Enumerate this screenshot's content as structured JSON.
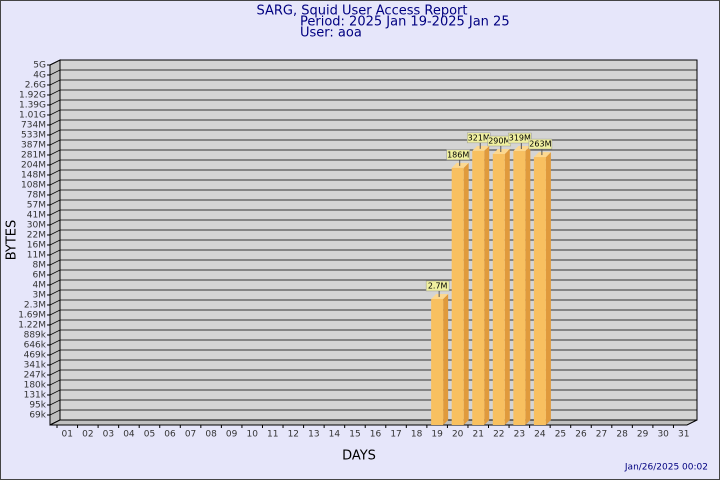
{
  "chart_data": {
    "type": "bar",
    "title": "SARG, Squid User Access Report",
    "subtitle": "Period: 2025 Jan 19-2025 Jan 25",
    "user": "User: aoa",
    "xlabel": "DAYS",
    "ylabel": "BYTES",
    "footer": "Jan/26/2025 00:02",
    "color": "#f8c060",
    "categories": [
      "01",
      "02",
      "03",
      "04",
      "05",
      "06",
      "07",
      "08",
      "09",
      "10",
      "11",
      "12",
      "13",
      "14",
      "15",
      "16",
      "17",
      "18",
      "19",
      "20",
      "21",
      "22",
      "23",
      "24",
      "25",
      "26",
      "27",
      "28",
      "29",
      "30",
      "31"
    ],
    "values": [
      null,
      null,
      null,
      null,
      null,
      null,
      null,
      null,
      null,
      null,
      null,
      null,
      null,
      null,
      null,
      null,
      null,
      null,
      2700000,
      186000000,
      321000000,
      290000000,
      319000000,
      263000000,
      null,
      null,
      null,
      null,
      null,
      null,
      null
    ],
    "value_labels": [
      null,
      null,
      null,
      null,
      null,
      null,
      null,
      null,
      null,
      null,
      null,
      null,
      null,
      null,
      null,
      null,
      null,
      null,
      "2.7M",
      "186M",
      "321M",
      "290M",
      "319M",
      "263M",
      null,
      null,
      null,
      null,
      null,
      null,
      null
    ],
    "ylim": [
      50000,
      5000000000
    ],
    "yscale": "piecewise-log",
    "grid": true,
    "yticks": [
      {
        "value": 69000,
        "label": "69k"
      },
      {
        "value": 95000,
        "label": "95k"
      },
      {
        "value": 131000,
        "label": "131k"
      },
      {
        "value": 180000,
        "label": "180k"
      },
      {
        "value": 247000,
        "label": "247k"
      },
      {
        "value": 341000,
        "label": "341k"
      },
      {
        "value": 469000,
        "label": "469k"
      },
      {
        "value": 646000,
        "label": "646k"
      },
      {
        "value": 889000,
        "label": "889k"
      },
      {
        "value": 1220000,
        "label": "1.22M"
      },
      {
        "value": 1690000,
        "label": "1.69M"
      },
      {
        "value": 2300000,
        "label": "2.3M"
      },
      {
        "value": 3000000,
        "label": "3M"
      },
      {
        "value": 4000000,
        "label": "4M"
      },
      {
        "value": 6000000,
        "label": "6M"
      },
      {
        "value": 8000000,
        "label": "8M"
      },
      {
        "value": 11000000,
        "label": "11M"
      },
      {
        "value": 16000000,
        "label": "16M"
      },
      {
        "value": 22000000,
        "label": "22M"
      },
      {
        "value": 30000000,
        "label": "30M"
      },
      {
        "value": 41000000,
        "label": "41M"
      },
      {
        "value": 57000000,
        "label": "57M"
      },
      {
        "value": 78000000,
        "label": "78M"
      },
      {
        "value": 108000000,
        "label": "108M"
      },
      {
        "value": 148000000,
        "label": "148M"
      },
      {
        "value": 204000000,
        "label": "204M"
      },
      {
        "value": 281000000,
        "label": "281M"
      },
      {
        "value": 387000000,
        "label": "387M"
      },
      {
        "value": 533000000,
        "label": "533M"
      },
      {
        "value": 734000000,
        "label": "734M"
      },
      {
        "value": 1010000000,
        "label": "1.01G"
      },
      {
        "value": 1390000000,
        "label": "1.39G"
      },
      {
        "value": 1920000000,
        "label": "1.92G"
      },
      {
        "value": 2600000000,
        "label": "2.6G"
      },
      {
        "value": 4000000000,
        "label": "4G"
      },
      {
        "value": 5000000000,
        "label": "5G"
      }
    ]
  }
}
